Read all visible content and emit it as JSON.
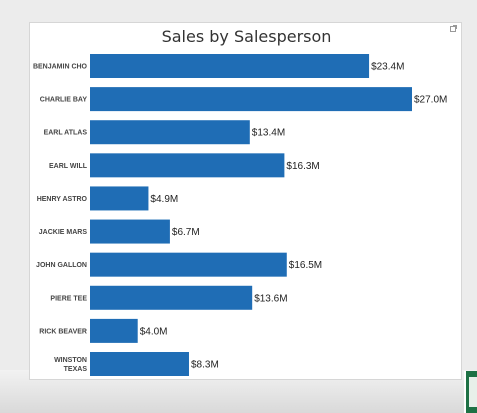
{
  "chart_data": {
    "type": "bar",
    "orientation": "horizontal",
    "title": "Sales by Salesperson",
    "categories": [
      "BENJAMIN CHO",
      "CHARLIE BAY",
      "EARL ATLAS",
      "EARL WILL",
      "HENRY ASTRO",
      "JACKIE MARS",
      "JOHN GALLON",
      "PIERE TEE",
      "RICK BEAVER",
      "WINSTON TEXAS"
    ],
    "values": [
      23.4,
      27.0,
      13.4,
      16.3,
      4.9,
      6.7,
      16.5,
      13.6,
      4.0,
      8.3
    ],
    "data_labels": [
      "$23.4M",
      "$27.0M",
      "$13.4M",
      "$16.3M",
      "$4.9M",
      "$6.7M",
      "$16.5M",
      "$13.6M",
      "$4.0M",
      "$8.3M"
    ],
    "xlim": [
      0,
      27.0
    ],
    "bar_color": "#1f6db5",
    "grid": false,
    "legend": "none"
  }
}
